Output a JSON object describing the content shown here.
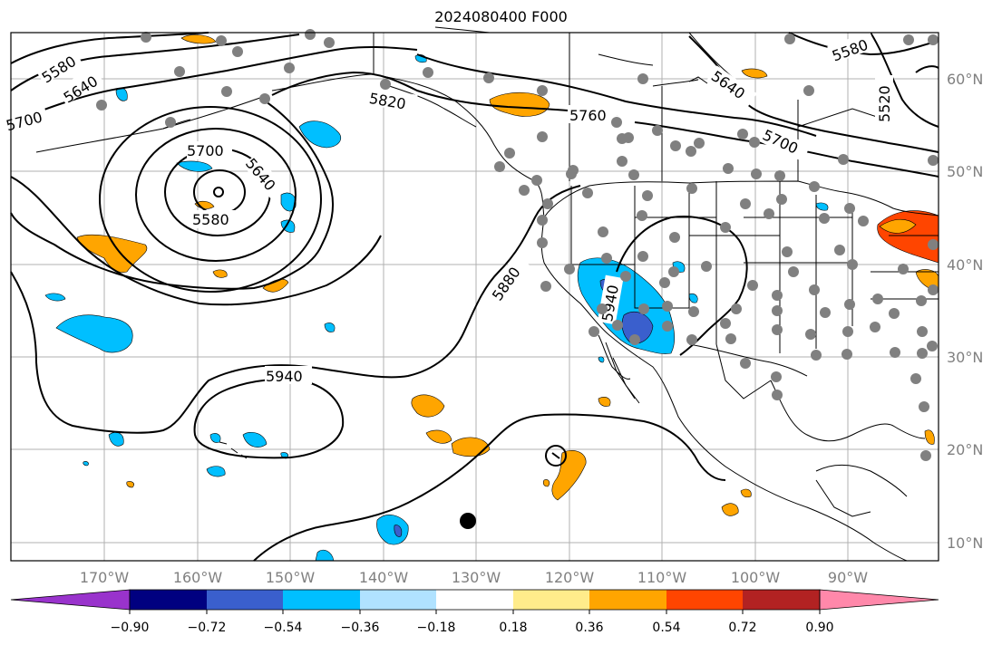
{
  "title": "2024080400 F000",
  "map": {
    "lon_labels": [
      "170°W",
      "160°W",
      "150°W",
      "140°W",
      "130°W",
      "120°W",
      "110°W",
      "100°W",
      "90°W"
    ],
    "lat_labels": [
      "60°N",
      "50°N",
      "40°N",
      "30°N",
      "20°N",
      "10°N"
    ],
    "contour_labels": [
      "5580",
      "5640",
      "5700",
      "5820",
      "5760",
      "5640",
      "5580",
      "5520",
      "5700",
      "5700",
      "5640",
      "5580",
      "5880",
      "5940",
      "5940"
    ]
  },
  "colorbar": {
    "colors": [
      "#9933cc",
      "#000080",
      "#3a5fcd",
      "#00bfff",
      "#b0e2ff",
      "#ffffff",
      "#ffec8b",
      "#ffa500",
      "#ff4500",
      "#b22222",
      "#ff88aa"
    ],
    "labels": [
      "−0.90",
      "−0.72",
      "−0.54",
      "−0.36",
      "−0.18",
      "0.18",
      "0.36",
      "0.54",
      "0.72",
      "0.90"
    ]
  },
  "colors": {
    "grid": "#b0b0b0",
    "coast": "#000000",
    "station": "#808080",
    "positive": "#ffa500",
    "negative": "#00bfff"
  }
}
